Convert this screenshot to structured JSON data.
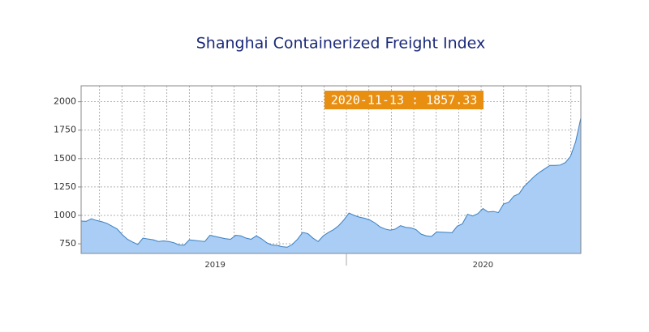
{
  "chart_data": {
    "type": "area",
    "title": "Shanghai Containerized Freight Index",
    "annotation": "2020-11-13 : 1857.33",
    "categories": [
      null,
      null,
      null,
      null,
      null,
      null,
      null,
      null,
      null,
      null,
      null,
      null,
      null,
      null,
      null,
      null,
      null,
      null,
      null,
      null,
      null,
      null,
      null,
      null,
      null,
      null,
      "2019",
      null,
      null,
      null,
      null,
      null,
      null,
      null,
      null,
      null,
      null,
      null,
      null,
      null,
      null,
      null,
      null,
      null,
      null,
      null,
      null,
      null,
      null,
      null,
      null,
      null,
      null,
      null,
      null,
      null,
      null,
      null,
      null,
      null,
      null,
      null,
      null,
      null,
      null,
      null,
      null,
      null,
      null,
      null,
      null,
      null,
      null,
      null,
      null,
      null,
      null,
      null,
      "2020",
      null,
      null,
      null,
      null,
      null,
      null,
      null,
      null,
      null,
      null,
      null,
      null,
      null,
      null,
      null,
      null,
      null,
      null,
      null
    ],
    "values": [
      950,
      948,
      970,
      955,
      945,
      930,
      905,
      880,
      830,
      790,
      765,
      745,
      800,
      792,
      785,
      770,
      775,
      770,
      760,
      740,
      738,
      785,
      780,
      775,
      770,
      825,
      815,
      805,
      795,
      790,
      825,
      820,
      800,
      790,
      820,
      795,
      760,
      740,
      735,
      725,
      720,
      745,
      790,
      850,
      840,
      800,
      770,
      820,
      850,
      875,
      910,
      960,
      1020,
      1000,
      985,
      975,
      960,
      935,
      900,
      880,
      870,
      880,
      910,
      895,
      890,
      875,
      835,
      820,
      815,
      855,
      852,
      850,
      848,
      905,
      925,
      1010,
      995,
      1015,
      1060,
      1030,
      1035,
      1025,
      1100,
      1115,
      1170,
      1190,
      1255,
      1300,
      1345,
      1380,
      1410,
      1440,
      1440,
      1443,
      1465,
      1520,
      1650,
      1857.33
    ],
    "color": "#a9cdf5",
    "line_color": "#3b7fc0",
    "ylim": [
      665,
      2140
    ],
    "yticks": [
      750,
      1000,
      1250,
      1500,
      1750,
      2000
    ],
    "grid": true
  }
}
